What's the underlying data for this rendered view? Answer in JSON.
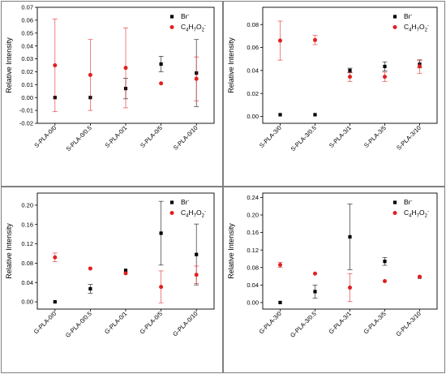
{
  "colors": {
    "Br-": "#000000",
    "C4H7O2-": "#e02020"
  },
  "chart_data": [
    {
      "type": "scatter",
      "categories": [
        "S-PLA-0/0",
        "S-PLA-0/0.5",
        "S-PLA-0/1",
        "S-PLA-0/5",
        "S-PLA-0/10"
      ],
      "ylabel": "Relative Intensity",
      "ylim": [
        -0.02,
        0.07
      ],
      "yticks": [
        "-0.02",
        "-0.01",
        "0.00",
        "0.01",
        "0.02",
        "0.03",
        "0.04",
        "0.05",
        "0.06",
        "0.07"
      ],
      "legend": "top-right",
      "series": [
        {
          "name": "Br-",
          "values": [
            0.0,
            0.0,
            0.007,
            0.026,
            0.019
          ],
          "errors": [
            0.0,
            0.0,
            0.008,
            0.006,
            0.026
          ]
        },
        {
          "name": "C4H7O2-",
          "values": [
            0.025,
            0.0175,
            0.023,
            0.011,
            0.0145
          ],
          "errors": [
            0.036,
            0.0275,
            0.031,
            0.0,
            0.017
          ]
        }
      ]
    },
    {
      "type": "scatter",
      "categories": [
        "S-PLA-3/0",
        "S-PLA-3/0.5",
        "S-PLA-3/1",
        "S-PLA-3/5",
        "S-PLA-3/10"
      ],
      "ylabel": "Relative Intensity",
      "ylim": [
        -0.006,
        0.095
      ],
      "yticks": [
        "0.00",
        "0.02",
        "0.04",
        "0.06",
        "0.08"
      ],
      "legend": "top-right",
      "series": [
        {
          "name": "Br-",
          "values": [
            0.0015,
            0.0015,
            0.04,
            0.0435,
            0.0455
          ],
          "errors": [
            0.0,
            0.0,
            0.002,
            0.004,
            0.003
          ]
        },
        {
          "name": "C4H7O2-",
          "values": [
            0.066,
            0.0665,
            0.0345,
            0.0345,
            0.0435
          ],
          "errors": [
            0.017,
            0.004,
            0.004,
            0.004,
            0.006
          ]
        }
      ]
    },
    {
      "type": "scatter",
      "categories": [
        "G-PLA-0/0",
        "G-PLA-0/0.5",
        "G-PLA-0/1",
        "G-PLA-0/5",
        "G-PLA-0/10"
      ],
      "ylabel": "Relative Intensity",
      "ylim": [
        -0.015,
        0.225
      ],
      "yticks": [
        "0.00",
        "0.04",
        "0.08",
        "0.12",
        "0.16",
        "0.20"
      ],
      "legend": "top-right",
      "series": [
        {
          "name": "Br-",
          "values": [
            0.0,
            0.027,
            0.065,
            0.142,
            0.098
          ],
          "errors": [
            0.0,
            0.009,
            0.0,
            0.066,
            0.063
          ]
        },
        {
          "name": "C4H7O2-",
          "values": [
            0.092,
            0.069,
            0.059,
            0.031,
            0.056
          ],
          "errors": [
            0.009,
            0.0,
            0.0,
            0.033,
            0.018
          ]
        }
      ]
    },
    {
      "type": "scatter",
      "categories": [
        "G-PLA-3/0",
        "G-PLA-3/0.5",
        "G-PLA-3/1",
        "G-PLA-3/5",
        "G-PLA-3/10"
      ],
      "ylabel": "Relative Intensity",
      "ylim": [
        -0.015,
        0.25
      ],
      "yticks": [
        "0.00",
        "0.04",
        "0.08",
        "0.12",
        "0.16",
        "0.20",
        "0.24"
      ],
      "legend": "top-right",
      "series": [
        {
          "name": "Br-",
          "values": [
            0.0,
            0.025,
            0.15,
            0.094,
            0.058
          ],
          "errors": [
            0.0,
            0.015,
            0.075,
            0.009,
            0.0
          ]
        },
        {
          "name": "C4H7O2-",
          "values": [
            0.086,
            0.066,
            0.034,
            0.049,
            0.059
          ],
          "errors": [
            0.006,
            0.0,
            0.032,
            0.0,
            0.0
          ]
        }
      ]
    }
  ]
}
